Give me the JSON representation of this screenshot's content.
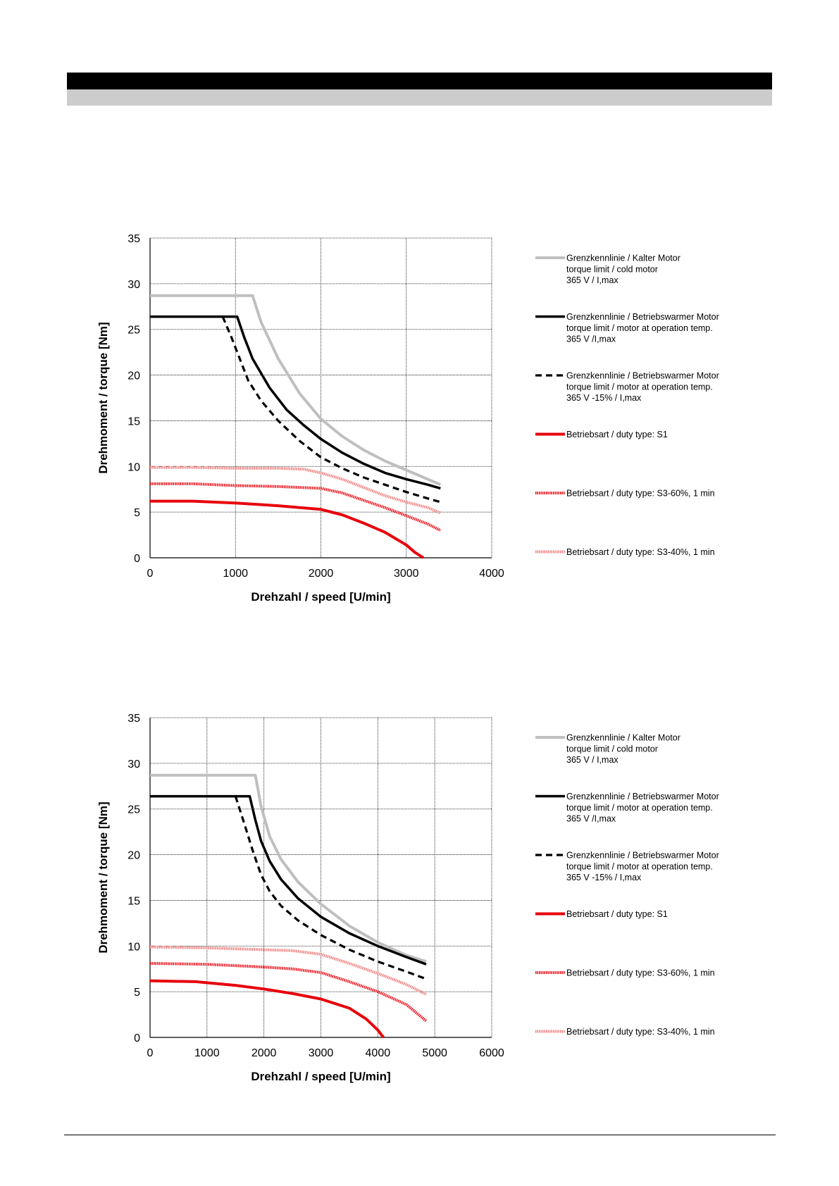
{
  "colors": {
    "grey": "#bfbfbf",
    "black": "#000000",
    "red": "#e8000b",
    "red_s3_60": "#e8101a",
    "red_s3_40": "#f08080"
  },
  "chart_data": [
    {
      "type": "line",
      "xlabel": "Drehzahl / speed [U/min]",
      "ylabel": "Drehmoment / torque [Nm]",
      "xlim": [
        0,
        4000
      ],
      "ylim": [
        0,
        35
      ],
      "xticks": [
        0,
        1000,
        2000,
        3000,
        4000
      ],
      "yticks": [
        0,
        5,
        10,
        15,
        20,
        25,
        30,
        35
      ],
      "grid": true,
      "legend_position": "right",
      "series": [
        {
          "name": "Grenzkennlinie / Kalter Motor",
          "lines": [
            "Grenzkennlinie / Kalter Motor",
            "torque limit / cold  motor",
            "365 V / I,max"
          ],
          "style": "grey",
          "x": [
            0,
            1200,
            1300,
            1500,
            1750,
            2000,
            2250,
            2500,
            2750,
            3000,
            3250,
            3400
          ],
          "y": [
            28.7,
            28.7,
            25.8,
            21.8,
            18.0,
            15.2,
            13.3,
            11.8,
            10.6,
            9.6,
            8.6,
            8.0
          ]
        },
        {
          "name": "Grenzkennlinie / Betriebswarmer Motor",
          "lines": [
            "Grenzkennlinie / Betriebswarmer Motor",
            "torque limit / motor at operation temp.",
            "365 V /I,max"
          ],
          "style": "black",
          "x": [
            0,
            1020,
            1100,
            1200,
            1400,
            1600,
            1800,
            2000,
            2250,
            2500,
            2750,
            3000,
            3250,
            3400
          ],
          "y": [
            26.4,
            26.4,
            24.2,
            21.8,
            18.6,
            16.2,
            14.5,
            13.0,
            11.5,
            10.3,
            9.3,
            8.6,
            8.0,
            7.6
          ]
        },
        {
          "name": "Grenzkennlinie / Betriebswarmer Motor",
          "lines": [
            "Grenzkennlinie / Betriebswarmer Motor",
            "torque limit / motor at operation temp.",
            "365 V  -15% / I,max"
          ],
          "style": "dashed",
          "x": [
            850,
            950,
            1050,
            1150,
            1300,
            1500,
            1750,
            2000,
            2250,
            2500,
            2750,
            3000,
            3250,
            3400
          ],
          "y": [
            26.4,
            24.2,
            21.8,
            19.4,
            17.2,
            15.0,
            12.8,
            11.0,
            9.8,
            8.8,
            8.0,
            7.2,
            6.5,
            6.1
          ]
        },
        {
          "name": "Betriebsart / duty type: S1",
          "lines": [
            "Betriebsart / duty type: S1"
          ],
          "style": "red",
          "x": [
            0,
            500,
            1000,
            1500,
            2000,
            2250,
            2500,
            2750,
            3000,
            3100,
            3200
          ],
          "y": [
            6.2,
            6.2,
            6.0,
            5.7,
            5.3,
            4.7,
            3.8,
            2.8,
            1.4,
            0.6,
            0.0
          ]
        },
        {
          "name": "Betriebsart / duty type: S3-60%, 1 min",
          "lines": [
            "Betriebsart / duty type: S3-60%, 1 min"
          ],
          "style": "red_s3_60",
          "x": [
            0,
            500,
            1000,
            1500,
            2000,
            2250,
            2500,
            2750,
            3000,
            3250,
            3400
          ],
          "y": [
            8.1,
            8.1,
            7.9,
            7.8,
            7.6,
            7.1,
            6.3,
            5.5,
            4.6,
            3.7,
            3.0
          ]
        },
        {
          "name": "Betriebsart / duty type: S3-40%, 1 min",
          "lines": [
            "Betriebsart / duty type: S3-40%, 1 min"
          ],
          "style": "red_s3_40",
          "x": [
            0,
            500,
            1000,
            1500,
            1800,
            2000,
            2250,
            2500,
            2750,
            3000,
            3250,
            3400
          ],
          "y": [
            9.9,
            9.9,
            9.8,
            9.8,
            9.7,
            9.3,
            8.6,
            7.7,
            6.8,
            6.1,
            5.5,
            4.9
          ]
        }
      ]
    },
    {
      "type": "line",
      "xlabel": "Drehzahl / speed [U/min]",
      "ylabel": "Drehmoment / torque [Nm]",
      "xlim": [
        0,
        6000
      ],
      "ylim": [
        0,
        35
      ],
      "xticks": [
        0,
        1000,
        2000,
        3000,
        4000,
        5000,
        6000
      ],
      "yticks": [
        0,
        5,
        10,
        15,
        20,
        25,
        30,
        35
      ],
      "grid": true,
      "legend_position": "right",
      "series": [
        {
          "name": "Grenzkennlinie / Kalter Motor",
          "lines": [
            "Grenzkennlinie / Kalter Motor",
            "torque limit / cold  motor",
            "365 V / I,max"
          ],
          "style": "grey",
          "x": [
            0,
            1850,
            1950,
            2100,
            2300,
            2600,
            3000,
            3500,
            4000,
            4500,
            4850
          ],
          "y": [
            28.7,
            28.7,
            25.3,
            22.0,
            19.5,
            17.0,
            14.6,
            12.2,
            10.4,
            9.0,
            8.3
          ]
        },
        {
          "name": "Grenzkennlinie / Betriebswarmer Motor",
          "lines": [
            "Grenzkennlinie / Betriebswarmer Motor",
            "torque limit / motor at operation temp.",
            "365 V /I,max"
          ],
          "style": "black",
          "x": [
            0,
            1750,
            1850,
            1950,
            2100,
            2300,
            2600,
            3000,
            3500,
            4000,
            4500,
            4850
          ],
          "y": [
            26.4,
            26.4,
            23.8,
            21.5,
            19.3,
            17.3,
            15.2,
            13.2,
            11.4,
            10.0,
            8.8,
            8.0
          ]
        },
        {
          "name": "Grenzkennlinie / Betriebswarmer Motor",
          "lines": [
            "Grenzkennlinie / Betriebswarmer Motor",
            "torque limit / motor at operation temp.",
            "365 V  -15% / I,max"
          ],
          "style": "dashed",
          "x": [
            1500,
            1650,
            1800,
            1950,
            2100,
            2300,
            2600,
            3000,
            3500,
            4000,
            4500,
            4850
          ],
          "y": [
            26.4,
            23.5,
            20.5,
            17.8,
            16.0,
            14.4,
            12.8,
            11.2,
            9.6,
            8.3,
            7.2,
            6.4
          ]
        },
        {
          "name": "Betriebsart / duty type: S1",
          "lines": [
            "Betriebsart / duty type: S1"
          ],
          "style": "red",
          "x": [
            0,
            800,
            1500,
            2000,
            2500,
            3000,
            3500,
            3800,
            4000,
            4100
          ],
          "y": [
            6.2,
            6.1,
            5.7,
            5.3,
            4.8,
            4.2,
            3.2,
            2.0,
            0.8,
            0.0
          ]
        },
        {
          "name": "Betriebsart / duty type: S3-60%, 1 min",
          "lines": [
            "Betriebsart / duty type: S3-60%, 1 min"
          ],
          "style": "red_s3_60",
          "x": [
            0,
            1000,
            2000,
            2500,
            3000,
            3500,
            4000,
            4500,
            4850
          ],
          "y": [
            8.1,
            8.0,
            7.7,
            7.5,
            7.1,
            6.1,
            5.0,
            3.6,
            1.8
          ]
        },
        {
          "name": "Betriebsart / duty type: S3-40%, 1 min",
          "lines": [
            "Betriebsart / duty type: S3-40%, 1 min"
          ],
          "style": "red_s3_40",
          "x": [
            0,
            1000,
            2000,
            2500,
            3000,
            3500,
            4000,
            4500,
            4850
          ],
          "y": [
            9.9,
            9.8,
            9.6,
            9.5,
            9.1,
            8.1,
            7.0,
            5.8,
            4.7
          ]
        }
      ]
    }
  ]
}
